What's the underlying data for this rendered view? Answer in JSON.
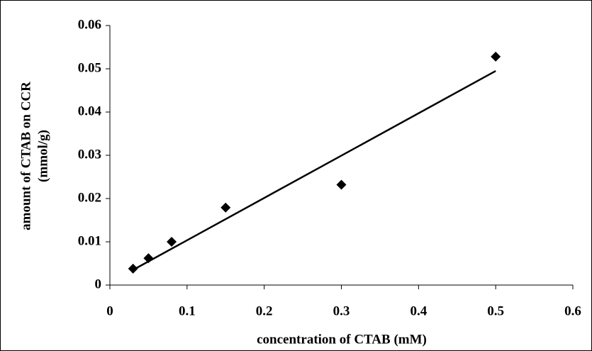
{
  "chart_data": {
    "type": "scatter",
    "x_label": "concentration of CTAB (mM)",
    "y_label": [
      "amount of CTAB on CCR",
      "(mmol/g)"
    ],
    "series": [
      {
        "color": "#000000",
        "x": [
          0.03,
          0.05,
          0.08,
          0.15,
          0.3,
          0.5
        ],
        "values": [
          0.0038,
          0.0062,
          0.01,
          0.0179,
          0.0232,
          0.0528
        ]
      }
    ],
    "trendline": {
      "color": "#000000",
      "x": [
        0.03,
        0.5
      ],
      "values": [
        0.0035,
        0.0495
      ]
    },
    "xlim": [
      0,
      0.6
    ],
    "xticks": [
      0,
      0.1,
      0.2,
      0.3,
      0.4,
      0.5,
      0.6
    ],
    "ylim": [
      0,
      0.06
    ],
    "yticks": [
      0,
      0.01,
      0.02,
      0.03,
      0.04,
      0.05,
      0.06
    ],
    "grid": false
  }
}
